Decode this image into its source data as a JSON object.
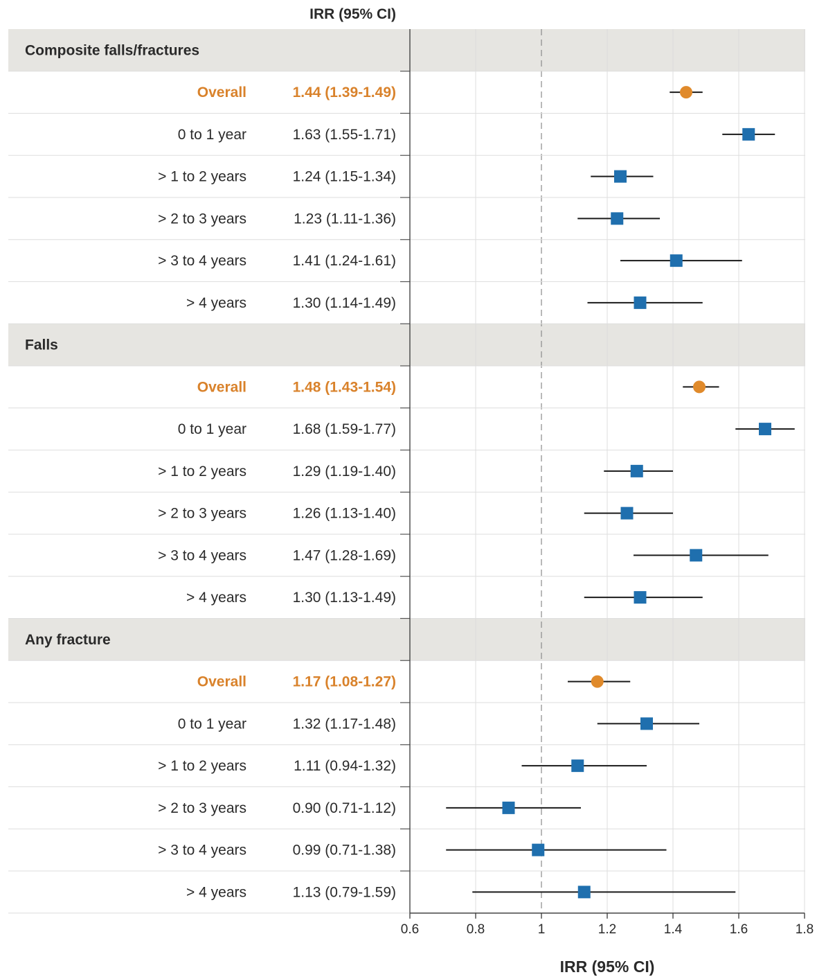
{
  "chart_data": {
    "type": "forest",
    "column_header": "IRR (95% CI)",
    "xlabel": "IRR (95% CI)",
    "xlim": [
      0.6,
      1.8
    ],
    "xticks": [
      0.6,
      0.8,
      1,
      1.2,
      1.4,
      1.6,
      1.8
    ],
    "xtick_labels": [
      "0.6",
      "0.8",
      "1",
      "1.2",
      "1.4",
      "1.6",
      "1.8"
    ],
    "reference_line": 1,
    "grid": true,
    "colors": {
      "overall": "#e08a2b",
      "subgroup": "#1f6fae",
      "overall_text": "#d9822b",
      "band": "#e6e5e1",
      "ci_line": "#1a1a1a"
    },
    "groups": [
      {
        "name": "Composite falls/fractures",
        "rows": [
          {
            "label": "Overall",
            "ci_text": "1.44 (1.39-1.49)",
            "estimate": 1.44,
            "lower": 1.39,
            "upper": 1.49,
            "overall": true
          },
          {
            "label": "0 to 1 year",
            "ci_text": "1.63 (1.55-1.71)",
            "estimate": 1.63,
            "lower": 1.55,
            "upper": 1.71,
            "overall": false
          },
          {
            "label": "> 1 to 2 years",
            "ci_text": "1.24 (1.15-1.34)",
            "estimate": 1.24,
            "lower": 1.15,
            "upper": 1.34,
            "overall": false
          },
          {
            "label": "> 2 to 3 years",
            "ci_text": "1.23 (1.11-1.36)",
            "estimate": 1.23,
            "lower": 1.11,
            "upper": 1.36,
            "overall": false
          },
          {
            "label": "> 3 to 4 years",
            "ci_text": "1.41 (1.24-1.61)",
            "estimate": 1.41,
            "lower": 1.24,
            "upper": 1.61,
            "overall": false
          },
          {
            "label": "> 4 years",
            "ci_text": "1.30 (1.14-1.49)",
            "estimate": 1.3,
            "lower": 1.14,
            "upper": 1.49,
            "overall": false
          }
        ]
      },
      {
        "name": "Falls",
        "rows": [
          {
            "label": "Overall",
            "ci_text": "1.48 (1.43-1.54)",
            "estimate": 1.48,
            "lower": 1.43,
            "upper": 1.54,
            "overall": true
          },
          {
            "label": "0 to 1 year",
            "ci_text": "1.68 (1.59-1.77)",
            "estimate": 1.68,
            "lower": 1.59,
            "upper": 1.77,
            "overall": false
          },
          {
            "label": "> 1 to 2 years",
            "ci_text": "1.29 (1.19-1.40)",
            "estimate": 1.29,
            "lower": 1.19,
            "upper": 1.4,
            "overall": false
          },
          {
            "label": "> 2 to 3 years",
            "ci_text": "1.26 (1.13-1.40)",
            "estimate": 1.26,
            "lower": 1.13,
            "upper": 1.4,
            "overall": false
          },
          {
            "label": "> 3 to 4 years",
            "ci_text": "1.47 (1.28-1.69)",
            "estimate": 1.47,
            "lower": 1.28,
            "upper": 1.69,
            "overall": false
          },
          {
            "label": "> 4 years",
            "ci_text": "1.30 (1.13-1.49)",
            "estimate": 1.3,
            "lower": 1.13,
            "upper": 1.49,
            "overall": false
          }
        ]
      },
      {
        "name": "Any fracture",
        "rows": [
          {
            "label": "Overall",
            "ci_text": "1.17 (1.08-1.27)",
            "estimate": 1.17,
            "lower": 1.08,
            "upper": 1.27,
            "overall": true
          },
          {
            "label": "0 to 1 year",
            "ci_text": "1.32 (1.17-1.48)",
            "estimate": 1.32,
            "lower": 1.17,
            "upper": 1.48,
            "overall": false
          },
          {
            "label": "> 1 to 2 years",
            "ci_text": "1.11 (0.94-1.32)",
            "estimate": 1.11,
            "lower": 0.94,
            "upper": 1.32,
            "overall": false
          },
          {
            "label": "> 2 to 3 years",
            "ci_text": "0.90 (0.71-1.12)",
            "estimate": 0.9,
            "lower": 0.71,
            "upper": 1.12,
            "overall": false
          },
          {
            "label": "> 3 to 4 years",
            "ci_text": "0.99 (0.71-1.38)",
            "estimate": 0.99,
            "lower": 0.71,
            "upper": 1.38,
            "overall": false
          },
          {
            "label": "> 4 years",
            "ci_text": "1.13 (0.79-1.59)",
            "estimate": 1.13,
            "lower": 0.79,
            "upper": 1.59,
            "overall": false
          }
        ]
      }
    ]
  }
}
